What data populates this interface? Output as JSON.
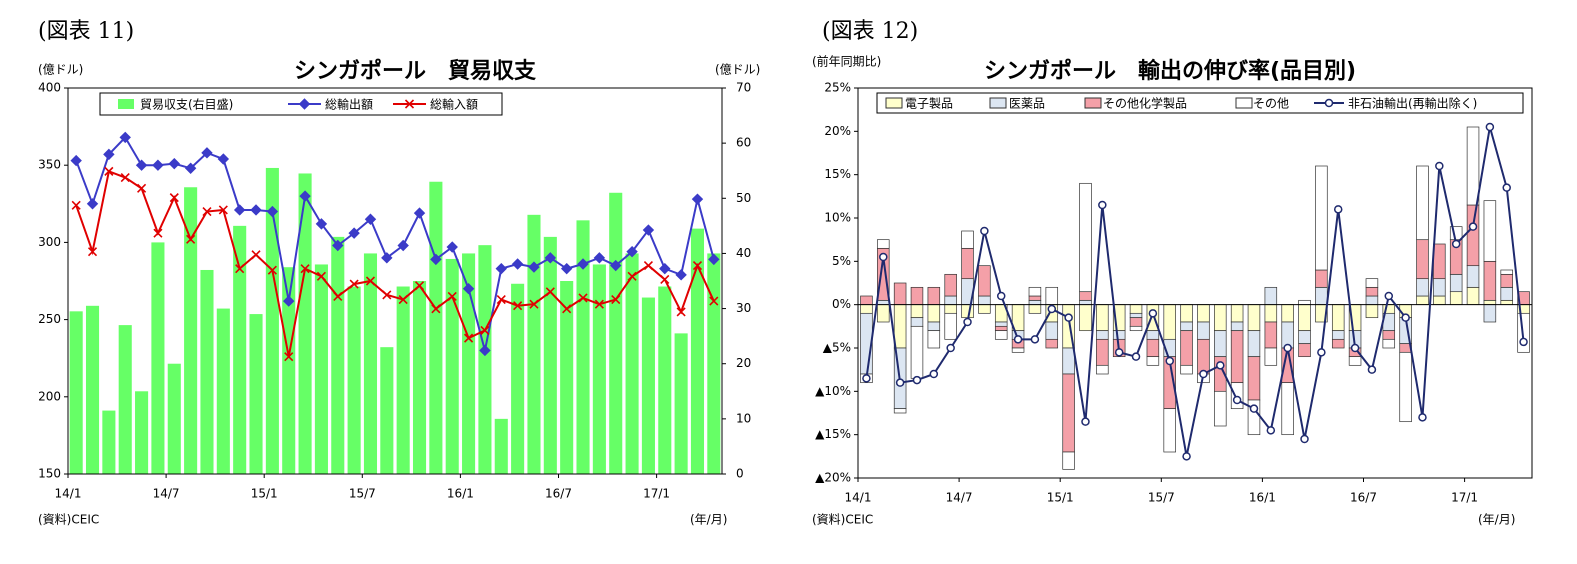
{
  "chart_data": [
    {
      "type": "bar_line",
      "figure_label": "(図表 11)",
      "title": "シンガポール　貿易収支",
      "y_label": "(億ドル)",
      "y2_label": "(億ドル)",
      "source": "(資料)CEIC",
      "x_unit": "(年/月)",
      "categories": [
        "14/1",
        null,
        null,
        null,
        null,
        null,
        "14/7",
        null,
        null,
        null,
        null,
        null,
        "15/1",
        null,
        null,
        null,
        null,
        null,
        "15/7",
        null,
        null,
        null,
        null,
        null,
        "16/1",
        null,
        null,
        null,
        null,
        null,
        "16/7",
        null,
        null,
        null,
        null,
        null,
        "17/1",
        null,
        null,
        null
      ],
      "ylim": [
        150,
        400
      ],
      "yticks": [
        150,
        200,
        250,
        300,
        350,
        400
      ],
      "y2lim": [
        0,
        70
      ],
      "y2ticks": [
        0,
        10,
        20,
        30,
        40,
        50,
        60,
        70
      ],
      "series": [
        {
          "name": "貿易収支(右目盛)",
          "type": "bar",
          "axis": "y2",
          "color": "#66ff66",
          "values": [
            29.5,
            30.5,
            11.5,
            27,
            15,
            42,
            20,
            52,
            37,
            30,
            45,
            29,
            55.5,
            37.5,
            54.5,
            38,
            43,
            34,
            40,
            23,
            34,
            35,
            53,
            39,
            40,
            41.5,
            10,
            34.5,
            47,
            43,
            35,
            46,
            38,
            51,
            40,
            32,
            34,
            25.5,
            44.5,
            40
          ]
        },
        {
          "name": "総輸出額",
          "type": "line",
          "marker": "diamond",
          "color": "#3b3bc8",
          "values": [
            353,
            325,
            357,
            368,
            350,
            350,
            351,
            348,
            358,
            354,
            321,
            321,
            320,
            262,
            330,
            312,
            298,
            306,
            315,
            290,
            298,
            319,
            289,
            297,
            270,
            230,
            283,
            286,
            284,
            290,
            283,
            286,
            290,
            285,
            294,
            308,
            283,
            279,
            328,
            289
          ]
        },
        {
          "name": "総輸入額",
          "type": "line",
          "marker": "x",
          "color": "#e00000",
          "values": [
            324,
            294,
            346,
            342,
            335,
            306,
            329,
            302,
            320,
            321,
            283,
            292,
            282,
            226,
            283,
            278,
            265,
            273,
            275,
            266,
            263,
            272,
            257,
            265,
            238,
            243,
            263,
            259,
            260,
            268,
            257,
            264,
            260,
            263,
            278,
            285,
            276,
            255,
            285,
            262
          ]
        }
      ]
    },
    {
      "type": "stacked_bar_line",
      "figure_label": "(図表 12)",
      "title": "シンガポール　輸出の伸び率(品目別)",
      "y_label": "(前年同期比)",
      "source": "(資料)CEIC",
      "x_unit": "(年/月)",
      "categories": [
        "14/1",
        null,
        null,
        null,
        null,
        null,
        "14/7",
        null,
        null,
        null,
        null,
        null,
        "15/1",
        null,
        null,
        null,
        null,
        null,
        "15/7",
        null,
        null,
        null,
        null,
        null,
        "16/1",
        null,
        null,
        null,
        null,
        null,
        "16/7",
        null,
        null,
        null,
        null,
        null,
        "17/1",
        null,
        null,
        null
      ],
      "ylim": [
        -20,
        25
      ],
      "yticks": [
        {
          "value": -20,
          "label": "▲20%"
        },
        {
          "value": -15,
          "label": "▲15%"
        },
        {
          "value": -10,
          "label": "▲10%"
        },
        {
          "value": -5,
          "label": "▲5%"
        },
        {
          "value": 0,
          "label": "0%"
        },
        {
          "value": 5,
          "label": "5%"
        },
        {
          "value": 10,
          "label": "10%"
        },
        {
          "value": 15,
          "label": "15%"
        },
        {
          "value": 20,
          "label": "20%"
        },
        {
          "value": 25,
          "label": "25%"
        }
      ],
      "series": [
        {
          "name": "電子製品",
          "type": "bar",
          "color": "#ffffcc",
          "values": [
            -1,
            -2,
            -5,
            -1.5,
            -2,
            -1,
            -1.5,
            -1,
            -2,
            -3,
            -1,
            -2,
            -5,
            -3,
            -3,
            -3,
            -1,
            -3,
            -4,
            -2,
            -2,
            -3,
            -2,
            -3,
            -2,
            -2,
            -3,
            -2,
            -3,
            -3,
            -1.5,
            -1,
            -1.5,
            1,
            1,
            1.5,
            2,
            0.5,
            0.5,
            -1
          ]
        },
        {
          "name": "医薬品",
          "type": "bar",
          "color": "#dce6f2",
          "values": [
            -7,
            0.5,
            -7,
            -1,
            -1,
            1,
            3,
            1,
            -0.5,
            -1,
            0.5,
            -2,
            -3,
            0.5,
            -1,
            -1,
            -0.5,
            -1,
            -2,
            -1,
            -2,
            -3,
            -1,
            -3,
            2,
            -3,
            -1.5,
            2,
            -1,
            -2,
            1,
            -2,
            -3,
            2,
            2,
            2,
            2.5,
            -2,
            1.5,
            0
          ]
        },
        {
          "name": "その他化学製品",
          "type": "bar",
          "color": "#f4a0a8",
          "values": [
            1,
            6,
            2.5,
            2,
            2,
            2.5,
            3.5,
            3.5,
            -0.5,
            -1,
            0.5,
            -1,
            -9,
            1,
            -3,
            -2,
            -1,
            -2,
            -6,
            -4,
            -4,
            -4,
            -6,
            -5,
            -3,
            -4,
            -1.5,
            2,
            -1,
            -1,
            1,
            -1,
            -1,
            4.5,
            4,
            4,
            7,
            4.5,
            1.5,
            1.5
          ]
        },
        {
          "name": "その他",
          "type": "bar",
          "color": "#ffffff",
          "values": [
            -1,
            1,
            -0.5,
            -6,
            -2,
            -3,
            2,
            0,
            -1,
            -0.5,
            1,
            2,
            -2,
            12.5,
            -1,
            0,
            -0.5,
            -1,
            -5,
            -1,
            -1,
            -4,
            -3,
            -4,
            -2,
            -6,
            0.5,
            12,
            0,
            -1,
            1,
            -1,
            -8,
            8.5,
            0,
            1.5,
            9,
            7,
            0.5,
            -4.5
          ]
        },
        {
          "name": "非石油輸出(再輸出除く)",
          "type": "line",
          "marker": "circle",
          "color": "#1f2a6e",
          "values": [
            -8.5,
            5.5,
            -9,
            -8.7,
            -8,
            -5,
            -2,
            8.5,
            1,
            -4,
            -4,
            -0.5,
            -1.5,
            -13.5,
            11.5,
            -5.5,
            -6,
            -1,
            -6.5,
            -17.5,
            -8,
            -7,
            -11,
            -12,
            -14.5,
            -5,
            -15.5,
            -5.5,
            11,
            -5,
            -7.5,
            1,
            -1.5,
            -13,
            16,
            7,
            9,
            20.5,
            13.5,
            -4.3
          ]
        }
      ]
    }
  ]
}
